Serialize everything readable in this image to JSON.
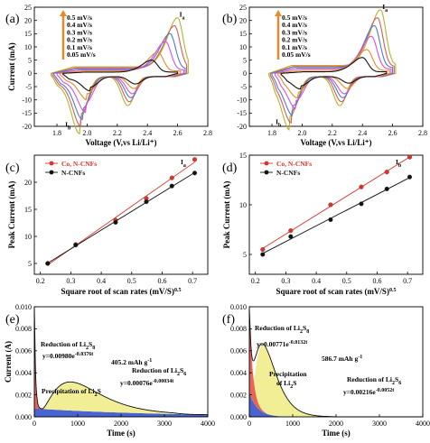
{
  "chart_data": [
    {
      "panel": "(a)",
      "type": "line",
      "xlabel": "Voltage (V,vs Li/Li⁺)",
      "ylabel": "Current (mA)",
      "xlim": [
        1.65,
        2.8
      ],
      "ylim": [
        -20,
        25
      ],
      "xticks": [
        "1.8",
        "2.0",
        "2.2",
        "2.4",
        "2.6",
        "2.8"
      ],
      "yticks": [
        "-20",
        "-15",
        "-10",
        "-5",
        "0",
        "5",
        "10",
        "15",
        "20",
        "25"
      ],
      "legend": [
        "0.5 mV/s",
        "0.4 mV/s",
        "0.3 mV/s",
        "0.2 mV/s",
        "0.1 mV/s",
        "0.05 mV/s"
      ],
      "peak_labels": [
        "Ia",
        "Ib"
      ],
      "curves": [
        {
          "name": "0.5 mV/s",
          "color": "#b5b32a",
          "x1": 1.76,
          "x2": 2.67,
          "Ia": [
            2.6,
            21
          ],
          "base": 2.5,
          "Ib": [
            1.95,
            -16
          ],
          "Ic": [
            2.27,
            -11
          ]
        },
        {
          "name": "0.4 mV/s",
          "color": "#d65a5a",
          "x1": 1.77,
          "x2": 2.66,
          "Ia": [
            2.58,
            18
          ],
          "base": 2.1,
          "Ib": [
            1.96,
            -14
          ],
          "Ic": [
            2.28,
            -9.5
          ]
        },
        {
          "name": "0.3 mV/s",
          "color": "#4a7bd6",
          "x1": 1.78,
          "x2": 2.65,
          "Ia": [
            2.55,
            15
          ],
          "base": 1.7,
          "Ib": [
            1.97,
            -12
          ],
          "Ic": [
            2.29,
            -8
          ]
        },
        {
          "name": "0.2 mV/s",
          "color": "#d84fd8",
          "x1": 1.8,
          "x2": 2.64,
          "Ia": [
            2.52,
            12
          ],
          "base": 1.3,
          "Ib": [
            1.99,
            -10
          ],
          "Ic": [
            2.3,
            -6.5
          ]
        },
        {
          "name": "0.1 mV/s",
          "color": "#e88a2a",
          "x1": 1.82,
          "x2": 2.62,
          "Ia": [
            2.47,
            8
          ],
          "base": 0.9,
          "Ib": [
            2.0,
            -6.5
          ],
          "Ic": [
            2.31,
            -4.5
          ]
        },
        {
          "name": "0.05 mV/s",
          "color": "#111111",
          "x1": 1.84,
          "x2": 2.6,
          "Ia": [
            2.43,
            5
          ],
          "base": 0.5,
          "Ib": [
            2.02,
            -4
          ],
          "Ic": [
            2.32,
            -2.8
          ]
        }
      ]
    },
    {
      "panel": "(b)",
      "type": "line",
      "xlabel": "Voltage (V,vs Li/Li⁺)",
      "ylabel": "",
      "xlim": [
        1.65,
        2.8
      ],
      "ylim": [
        -20,
        25
      ],
      "xticks": [
        "1.8",
        "2.0",
        "2.2",
        "2.4",
        "2.6",
        "2.8"
      ],
      "yticks": [
        "-20",
        "-15",
        "-10",
        "-5",
        "0",
        "5",
        "10",
        "15",
        "20",
        "25"
      ],
      "legend": [
        "0.5 mV/s",
        "0.4 mV/s",
        "0.3 mV/s",
        "0.2 mV/s",
        "0.1 mV/s",
        "0.05 mV/s"
      ],
      "peak_labels": [
        "Ia",
        "Ib"
      ],
      "curves": [
        {
          "name": "0.5 mV/s",
          "color": "#b5b32a",
          "x1": 1.78,
          "x2": 2.62,
          "Ia": [
            2.52,
            24
          ],
          "base": 3.0,
          "Ib": [
            1.92,
            -15
          ],
          "Ic": [
            2.25,
            -11
          ]
        },
        {
          "name": "0.4 mV/s",
          "color": "#d65a5a",
          "x1": 1.79,
          "x2": 2.61,
          "Ia": [
            2.5,
            21
          ],
          "base": 2.6,
          "Ib": [
            1.93,
            -13
          ],
          "Ic": [
            2.26,
            -9.5
          ]
        },
        {
          "name": "0.3 mV/s",
          "color": "#4a7bd6",
          "x1": 1.8,
          "x2": 2.6,
          "Ia": [
            2.48,
            18
          ],
          "base": 2.2,
          "Ib": [
            1.94,
            -11
          ],
          "Ic": [
            2.27,
            -8
          ]
        },
        {
          "name": "0.2 mV/s",
          "color": "#d84fd8",
          "x1": 1.82,
          "x2": 2.59,
          "Ia": [
            2.46,
            14
          ],
          "base": 1.7,
          "Ib": [
            1.96,
            -9
          ],
          "Ic": [
            2.28,
            -6.5
          ]
        },
        {
          "name": "0.1 mV/s",
          "color": "#e88a2a",
          "x1": 1.84,
          "x2": 2.58,
          "Ia": [
            2.43,
            9
          ],
          "base": 1.1,
          "Ib": [
            1.97,
            -6
          ],
          "Ic": [
            2.3,
            -4.5
          ]
        },
        {
          "name": "0.05 mV/s",
          "color": "#111111",
          "x1": 1.86,
          "x2": 2.56,
          "Ia": [
            2.4,
            6
          ],
          "base": 0.6,
          "Ib": [
            1.99,
            -3.5
          ],
          "Ic": [
            2.31,
            -2.5
          ]
        }
      ]
    },
    {
      "panel": "(c)",
      "type": "scatter",
      "xlabel": "Square root of scan rates (mV/S)0.5",
      "xlabel_main": "Square root of scan rates (mV/S)",
      "xlabel_sup": "0.5",
      "ylabel": "Peak Current (mA)",
      "xlim": [
        0.18,
        0.75
      ],
      "ylim": [
        3,
        25
      ],
      "xticks": [
        "0.2",
        "0.3",
        "0.4",
        "0.5",
        "0.6",
        "0.7"
      ],
      "xtick_vals": [
        0.2,
        0.3,
        0.4,
        0.5,
        0.6,
        0.7
      ],
      "yticks": [
        "5",
        "10",
        "15",
        "20"
      ],
      "ytick_vals": [
        5,
        10,
        15,
        20
      ],
      "peak_label": "Ia",
      "x": [
        0.224,
        0.316,
        0.447,
        0.548,
        0.632,
        0.707
      ],
      "series": [
        {
          "name": "Co, N-CNFs",
          "color": "#e0302a",
          "values": [
            5.0,
            8.5,
            13.0,
            17.0,
            20.8,
            24.2
          ]
        },
        {
          "name": "N-CNFs",
          "color": "#111111",
          "values": [
            5.0,
            8.4,
            12.6,
            16.4,
            19.3,
            21.7
          ]
        }
      ]
    },
    {
      "panel": "(d)",
      "type": "scatter",
      "xlabel": "Square root of scan rates (mV/S)0.5",
      "xlabel_main": "Square root of scan rates (mV/S)",
      "xlabel_sup": "0.5",
      "ylabel": "Peak Current (mA)",
      "xlim": [
        0.18,
        0.75
      ],
      "ylim": [
        3,
        15
      ],
      "xticks": [
        "0.2",
        "0.3",
        "0.4",
        "0.5",
        "0.6",
        "0.7"
      ],
      "xtick_vals": [
        0.2,
        0.3,
        0.4,
        0.5,
        0.6,
        0.7
      ],
      "yticks": [
        "5",
        "10",
        "15"
      ],
      "ytick_vals": [
        5,
        10,
        15
      ],
      "peak_label": "Ib",
      "x": [
        0.224,
        0.316,
        0.447,
        0.548,
        0.632,
        0.707
      ],
      "series": [
        {
          "name": "Co, N-CNFs",
          "color": "#e0302a",
          "values": [
            5.5,
            7.4,
            10.0,
            11.8,
            13.3,
            14.8
          ]
        },
        {
          "name": "N-CNFs",
          "color": "#111111",
          "values": [
            5.0,
            6.8,
            8.5,
            10.1,
            11.6,
            12.8
          ]
        }
      ]
    },
    {
      "panel": "(e)",
      "type": "area",
      "xlabel": "Time (s)",
      "ylabel": "Current (A)",
      "xlim": [
        0,
        4000
      ],
      "ylim": [
        0,
        0.01
      ],
      "xticks": [
        "0",
        "1000",
        "2000",
        "3000",
        "4000"
      ],
      "xtick_vals": [
        0,
        1000,
        2000,
        3000,
        4000
      ],
      "yticks": [
        "0.000",
        "0.002",
        "0.004",
        "0.006",
        "0.008",
        "0.010"
      ],
      "ytick_vals": [
        0,
        0.002,
        0.004,
        0.006,
        0.008,
        0.01
      ],
      "annotations": {
        "reduction_s8": "Reduction of Li2S8",
        "fit_s8": "y=0.00980e-0.0376t",
        "capacity": "405.2 mAh g-1",
        "reduction_s6": "Reduction of Li2S6",
        "fit_s6": "y=0.00076e-0.00034t",
        "precip": "Precipitation of Li2S"
      },
      "fit_s8": {
        "a": 0.0098,
        "k": 0.0376
      },
      "fit_s6": {
        "a": 0.00076,
        "k": 0.00034
      },
      "hump": {
        "peak_t": 850,
        "peak_val": 0.0026,
        "start": 180,
        "end": 3600
      },
      "noise_peak": 0.0085
    },
    {
      "panel": "(f)",
      "type": "area",
      "xlabel": "Time (s)",
      "ylabel": "",
      "xlim": [
        0,
        4000
      ],
      "ylim": [
        0,
        0.01
      ],
      "xticks": [
        "0",
        "1000",
        "2000",
        "3000",
        "4000"
      ],
      "xtick_vals": [
        0,
        1000,
        2000,
        3000,
        4000
      ],
      "yticks": [
        "0.000",
        "0.002",
        "0.004",
        "0.006",
        "0.008",
        "0.010"
      ],
      "ytick_vals": [
        0,
        0.002,
        0.004,
        0.006,
        0.008,
        0.01
      ],
      "annotations": {
        "reduction_s8": "Reduction of Li2S8",
        "fit_s8": "y=0.00771e-0.0132t",
        "capacity": "586.7 mAh g-1",
        "reduction_s6": "Reduction of Li2S6",
        "fit_s6": "y=0.00216e-0.0052t",
        "precip": "Precipitation of Li2S"
      },
      "fit_s8": {
        "a": 0.00771,
        "k": 0.0132
      },
      "fit_s6": {
        "a": 0.00216,
        "k": 0.0052
      },
      "hump": {
        "peak_t": 330,
        "peak_val": 0.0061,
        "start": 40,
        "end": 2400
      },
      "noise_peak": 0.0084
    }
  ]
}
